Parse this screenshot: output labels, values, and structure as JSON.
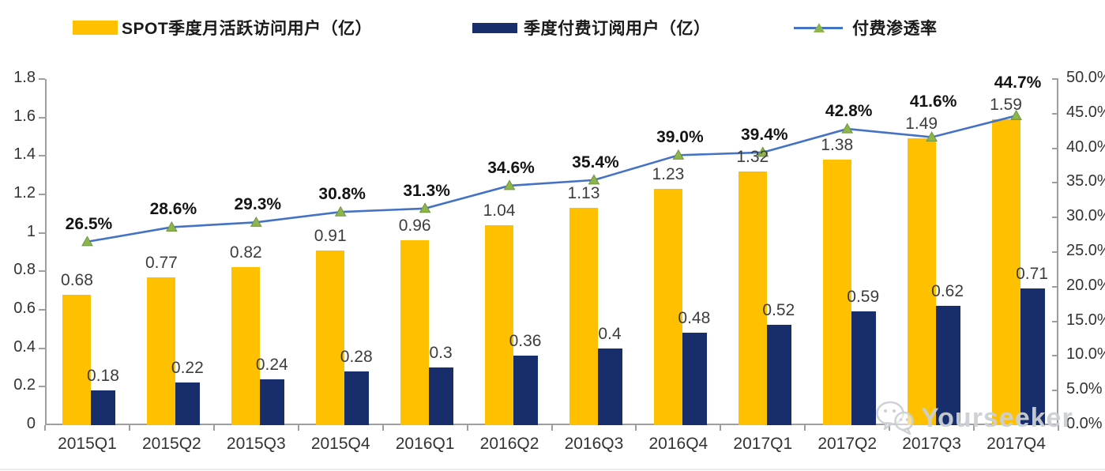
{
  "legend": {
    "mau_label": "SPOT季度月活跃访问用户（亿）",
    "paid_label": "季度付费订阅用户（亿）",
    "penetration_label": "付费渗透率"
  },
  "colors": {
    "mau_bar": "#FFC000",
    "paid_bar": "#182D6B",
    "line": "#4472C4",
    "marker": "#8DB54B",
    "axis": "#9E9E9E",
    "watermark": "#CCD0D4"
  },
  "watermark": {
    "text": "Yourseeker",
    "icon": "wechat-icon"
  },
  "chart_data": {
    "type": "combo (bar + line)",
    "title": "",
    "legend_position": "top",
    "grid": false,
    "categories": [
      "2015Q1",
      "2015Q2",
      "2015Q3",
      "2015Q4",
      "2016Q1",
      "2016Q2",
      "2016Q3",
      "2016Q4",
      "2017Q1",
      "2017Q2",
      "2017Q3",
      "2017Q4"
    ],
    "series": [
      {
        "name": "SPOT季度月活跃访问用户（亿）",
        "type": "bar",
        "axis": "left",
        "color": "#FFC000",
        "values": [
          0.68,
          0.77,
          0.82,
          0.91,
          0.96,
          1.04,
          1.13,
          1.23,
          1.32,
          1.38,
          1.49,
          1.59
        ],
        "labels": [
          "0.68",
          "0.77",
          "0.82",
          "0.91",
          "0.96",
          "1.04",
          "1.13",
          "1.23",
          "1.32",
          "1.38",
          "1.49",
          "1.59"
        ]
      },
      {
        "name": "季度付费订阅用户（亿）",
        "type": "bar",
        "axis": "left",
        "color": "#182D6B",
        "values": [
          0.18,
          0.22,
          0.24,
          0.28,
          0.3,
          0.36,
          0.4,
          0.48,
          0.52,
          0.59,
          0.62,
          0.71
        ],
        "labels": [
          "0.18",
          "0.22",
          "0.24",
          "0.28",
          "0.3",
          "0.36",
          "0.4",
          "0.48",
          "0.52",
          "0.59",
          "0.62",
          "0.71"
        ]
      },
      {
        "name": "付费渗透率",
        "type": "line",
        "axis": "right",
        "color": "#4472C4",
        "marker": "triangle",
        "marker_color": "#8DB54B",
        "values": [
          26.5,
          28.6,
          29.3,
          30.8,
          31.3,
          34.6,
          35.4,
          39.0,
          39.4,
          42.8,
          41.6,
          44.7
        ],
        "labels": [
          "26.5%",
          "28.6%",
          "29.3%",
          "30.8%",
          "31.3%",
          "34.6%",
          "35.4%",
          "39.0%",
          "39.4%",
          "42.8%",
          "41.6%",
          "44.7%"
        ]
      }
    ],
    "left_axis": {
      "min": 0,
      "max": 1.8,
      "ticks": [
        "0",
        "0.2",
        "0.4",
        "0.6",
        "0.8",
        "1",
        "1.2",
        "1.4",
        "1.6",
        "1.8"
      ]
    },
    "right_axis": {
      "min": 0,
      "max": 50,
      "ticks": [
        "0.0%",
        "5.0%",
        "10.0%",
        "15.0%",
        "20.0%",
        "25.0%",
        "30.0%",
        "35.0%",
        "40.0%",
        "45.0%",
        "50.0%"
      ]
    }
  }
}
